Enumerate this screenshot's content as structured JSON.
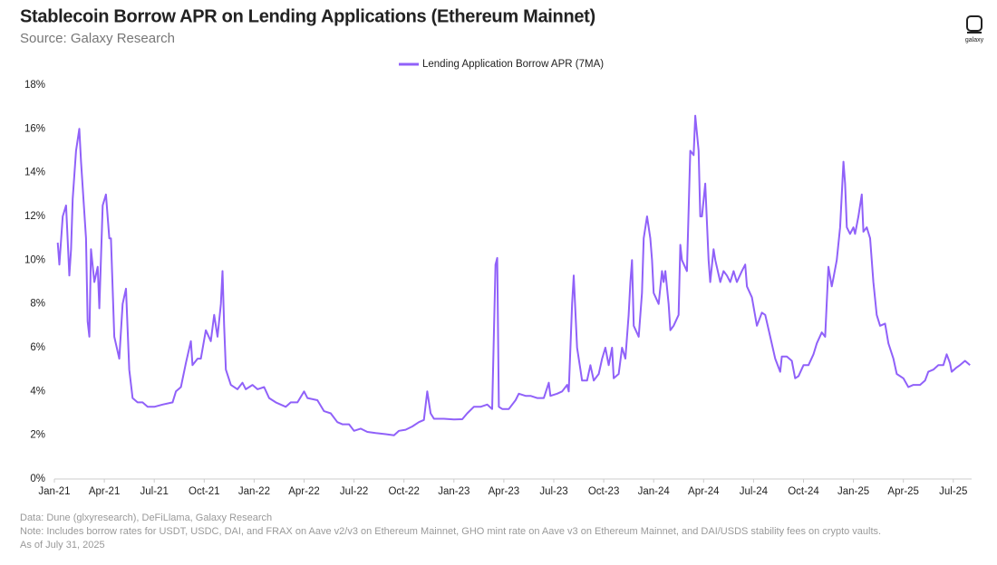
{
  "chart_data": {
    "type": "line",
    "title": "Stablecoin Borrow APR on Lending Applications (Ethereum Mainnet)",
    "subtitle": "Source: Galaxy Research",
    "logo": "galaxy",
    "notes": [
      "Data: Dune (glxyresearch), DeFiLlama, Galaxy Research",
      "Note: Includes borrow rates for USDT, USDC, DAI, and FRAX on Aave v2/v3 on Ethereum Mainnet, GHO mint rate on Aave v3 on Ethereum Mainnet, and DAI/USDS stability fees on crypto vaults.",
      "As of July 31, 2025"
    ],
    "x": [
      0.2,
      0.3,
      0.5,
      0.7,
      0.9,
      1.0,
      1.1,
      1.3,
      1.5,
      1.6,
      1.9,
      2.0,
      2.1,
      2.2,
      2.4,
      2.6,
      2.7,
      2.9,
      3.1,
      3.3,
      3.4,
      3.6,
      3.9,
      4.1,
      4.3,
      4.5,
      4.7,
      5.0,
      5.3,
      5.6,
      6.0,
      6.5,
      7.1,
      7.3,
      7.6,
      7.9,
      8.2,
      8.3,
      8.6,
      8.8,
      9.1,
      9.4,
      9.6,
      9.8,
      10.0,
      10.1,
      10.2,
      10.3,
      10.6,
      11.0,
      11.3,
      11.5,
      11.9,
      12.2,
      12.6,
      12.9,
      13.3,
      13.9,
      14.2,
      14.6,
      15.0,
      15.2,
      15.8,
      16.2,
      16.6,
      17.0,
      17.3,
      17.7,
      18.0,
      18.4,
      18.8,
      19.3,
      19.9,
      20.4,
      20.7,
      21.1,
      21.5,
      21.9,
      22.2,
      22.4,
      22.6,
      22.8,
      23.4,
      24.0,
      24.5,
      24.8,
      25.2,
      25.6,
      26.0,
      26.3,
      26.5,
      26.6,
      26.7,
      26.9,
      27.3,
      27.7,
      27.9,
      28.3,
      28.6,
      29.0,
      29.4,
      29.7,
      29.8,
      30.2,
      30.5,
      30.8,
      30.9,
      31.1,
      31.2,
      31.4,
      31.6,
      31.7,
      32.0,
      32.2,
      32.4,
      32.7,
      32.9,
      33.1,
      33.3,
      33.5,
      33.6,
      33.9,
      34.1,
      34.3,
      34.5,
      34.6,
      34.7,
      34.8,
      35.1,
      35.3,
      35.4,
      35.6,
      35.8,
      35.9,
      36.0,
      36.3,
      36.5,
      36.6,
      36.7,
      36.9,
      37.0,
      37.2,
      37.5,
      37.6,
      37.7,
      38.0,
      38.2,
      38.4,
      38.5,
      38.7,
      38.8,
      38.9,
      39.1,
      39.3,
      39.4,
      39.6,
      39.7,
      40.0,
      40.2,
      40.4,
      40.6,
      40.8,
      41.0,
      41.3,
      41.5,
      41.6,
      41.9,
      42.2,
      42.5,
      42.7,
      43.0,
      43.3,
      43.6,
      43.7,
      44.0,
      44.3,
      44.5,
      44.7,
      45.0,
      45.3,
      45.6,
      45.8,
      46.1,
      46.3,
      46.5,
      46.7,
      46.8,
      47.0,
      47.2,
      47.4,
      47.5,
      47.6,
      47.8,
      48.0,
      48.1,
      48.3,
      48.5,
      48.6,
      48.8,
      49.0,
      49.2,
      49.4,
      49.6,
      49.9,
      50.1,
      50.4,
      50.6,
      51.0,
      51.3,
      51.6,
      52.0,
      52.3,
      52.5,
      52.8,
      53.1,
      53.4,
      53.6,
      53.8,
      53.9,
      54.2,
      54.4,
      54.7,
      55.0
    ],
    "series": [
      {
        "name": "Lending Application Borrow APR (7MA)",
        "color": "#9061f9",
        "values": [
          10.8,
          9.8,
          12,
          12.5,
          9.3,
          10.5,
          12.8,
          15,
          16,
          14.5,
          11,
          7.2,
          6.5,
          10.5,
          9,
          9.7,
          7.8,
          12.5,
          13,
          11,
          11,
          6.5,
          5.5,
          8,
          8.7,
          5,
          3.7,
          3.5,
          3.5,
          3.3,
          3.3,
          3.4,
          3.5,
          4,
          4.2,
          5.3,
          6.3,
          5.2,
          5.5,
          5.5,
          6.8,
          6.3,
          7.5,
          6.5,
          8,
          9.5,
          7,
          5,
          4.3,
          4.1,
          4.4,
          4.1,
          4.3,
          4.1,
          4.2,
          3.7,
          3.5,
          3.3,
          3.5,
          3.5,
          4,
          3.7,
          3.6,
          3.1,
          3,
          2.6,
          2.5,
          2.5,
          2.2,
          2.3,
          2.15,
          2.1,
          2.05,
          2,
          2.2,
          2.25,
          2.4,
          2.6,
          2.7,
          4,
          3,
          2.75,
          2.75,
          2.72,
          2.73,
          3,
          3.3,
          3.3,
          3.4,
          3.2,
          9.8,
          10.1,
          3.3,
          3.2,
          3.2,
          3.6,
          3.9,
          3.8,
          3.8,
          3.7,
          3.7,
          4.4,
          3.8,
          3.9,
          4,
          4.3,
          4,
          8,
          9.3,
          6,
          5,
          4.5,
          4.5,
          5.2,
          4.5,
          4.8,
          5.5,
          6,
          5.2,
          6,
          4.6,
          4.8,
          6,
          5.5,
          7.5,
          9,
          10,
          7,
          6.5,
          8.5,
          11,
          12,
          11,
          10,
          8.5,
          8,
          9.5,
          9,
          9.5,
          8,
          6.8,
          7,
          7.5,
          10.7,
          10,
          9.5,
          15,
          14.8,
          16.6,
          15,
          12,
          12,
          13.5,
          10,
          9,
          10.5,
          10,
          9,
          9.5,
          9.3,
          9,
          9.5,
          9,
          9.5,
          9.8,
          8.8,
          8.3,
          7,
          7.6,
          7.5,
          6.5,
          5.5,
          4.9,
          5.6,
          5.6,
          5.4,
          4.6,
          4.7,
          5.2,
          5.2,
          5.7,
          6.2,
          6.7,
          6.5,
          9.7,
          8.8,
          9.2,
          10,
          11.5,
          14.5,
          13.5,
          11.5,
          11.2,
          11.5,
          11.2,
          12,
          13,
          11.3,
          11.5,
          11,
          9,
          7.5,
          7,
          7.1,
          6.2,
          5.5,
          4.8,
          4.6,
          4.2,
          4.3,
          4.3,
          4.5,
          4.9,
          5,
          5.2,
          5.2,
          5.7,
          5.3,
          4.9,
          5.1,
          5.2,
          5.4,
          5.2
        ]
      }
    ],
    "xlim": [
      0,
      55.1
    ],
    "xticks": [
      {
        "value": 0,
        "label": "Jan-21"
      },
      {
        "value": 3,
        "label": "Apr-21"
      },
      {
        "value": 6,
        "label": "Jul-21"
      },
      {
        "value": 9,
        "label": "Oct-21"
      },
      {
        "value": 12,
        "label": "Jan-22"
      },
      {
        "value": 15,
        "label": "Apr-22"
      },
      {
        "value": 18,
        "label": "Jul-22"
      },
      {
        "value": 21,
        "label": "Oct-22"
      },
      {
        "value": 24,
        "label": "Jan-23"
      },
      {
        "value": 27,
        "label": "Apr-23"
      },
      {
        "value": 30,
        "label": "Jul-23"
      },
      {
        "value": 33,
        "label": "Oct-23"
      },
      {
        "value": 36,
        "label": "Jan-24"
      },
      {
        "value": 39,
        "label": "Apr-24"
      },
      {
        "value": 42,
        "label": "Jul-24"
      },
      {
        "value": 45,
        "label": "Oct-24"
      },
      {
        "value": 48,
        "label": "Jan-25"
      },
      {
        "value": 51,
        "label": "Apr-25"
      },
      {
        "value": 54,
        "label": "Jul-25"
      }
    ],
    "ylim": [
      0,
      18
    ],
    "yticks": [
      {
        "value": 0,
        "label": "0%"
      },
      {
        "value": 2,
        "label": "2%"
      },
      {
        "value": 4,
        "label": "4%"
      },
      {
        "value": 6,
        "label": "6%"
      },
      {
        "value": 8,
        "label": "8%"
      },
      {
        "value": 10,
        "label": "10%"
      },
      {
        "value": 12,
        "label": "12%"
      },
      {
        "value": 14,
        "label": "14%"
      },
      {
        "value": 16,
        "label": "16%"
      },
      {
        "value": 18,
        "label": "18%"
      }
    ],
    "grid": false,
    "legend": "top"
  }
}
